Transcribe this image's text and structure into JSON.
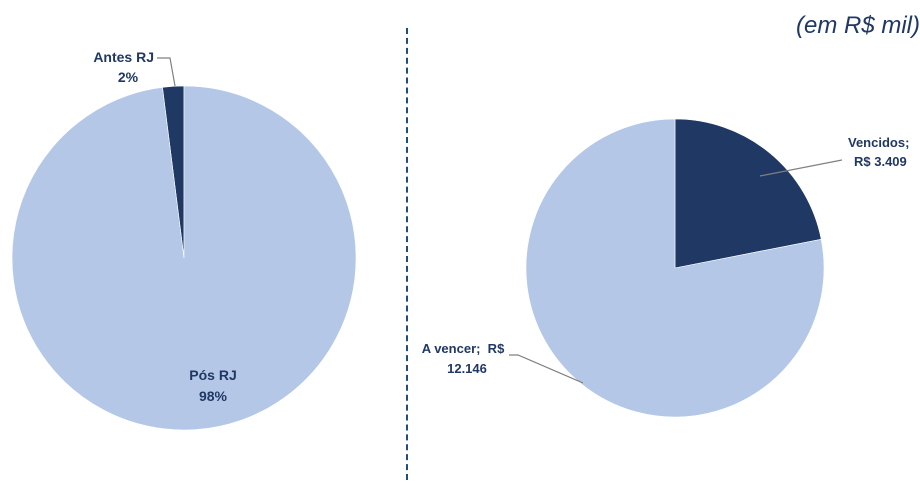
{
  "unit_note": "(em R$ mil)",
  "colors": {
    "light": "#b4c7e7",
    "dark": "#203864",
    "label": "#203864",
    "leader": "#808080"
  },
  "chart_data": [
    {
      "type": "pie",
      "title": "",
      "slices": [
        {
          "label_line1": "Antes RJ",
          "label_line2": "2%",
          "value": 2,
          "color": "#203864"
        },
        {
          "label_line1": "Pós RJ",
          "label_line2": "98%",
          "value": 98,
          "color": "#b4c7e7"
        }
      ]
    },
    {
      "type": "pie",
      "title": "",
      "slices": [
        {
          "label_line1": "Vencidos;",
          "label_line2": "R$ 3.409",
          "value": 3409,
          "color": "#203864"
        },
        {
          "label_line1": "A vencer;  R$",
          "label_line2": "12.146",
          "value": 12146,
          "color": "#b4c7e7"
        }
      ]
    }
  ]
}
